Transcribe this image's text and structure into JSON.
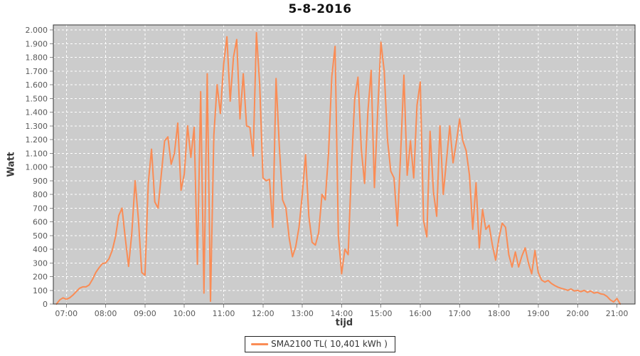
{
  "title": "5-8-2016",
  "colors": {
    "line": "#FA8C55",
    "plot_background": "#CCCCCC",
    "gridline": "#FFFFFF",
    "plot_border": "#333333",
    "tick_mark": "#8a8a8a",
    "tick_label": "#595959",
    "page_background": "#FFFFFF"
  },
  "legend": {
    "label": "SMA2100 TL( 10,401 kWh )"
  },
  "chart_data": {
    "type": "line",
    "title": "5-8-2016",
    "xlabel": "tijd",
    "ylabel": "Watt",
    "grid": true,
    "legend_position": "bottom",
    "xlim_hours": [
      6.67,
      21.46
    ],
    "ylim": [
      0,
      2000
    ],
    "y_tick_step": 100,
    "y_tick_labels": [
      "0",
      "100",
      "200",
      "300",
      "400",
      "500",
      "600",
      "700",
      "800",
      "900",
      "1.000",
      "1.100",
      "1.200",
      "1.300",
      "1.400",
      "1.500",
      "1.600",
      "1.700",
      "1.800",
      "1.900",
      "2.000"
    ],
    "x_tick_hours": [
      7,
      8,
      9,
      10,
      11,
      12,
      13,
      14,
      15,
      16,
      17,
      18,
      19,
      20,
      21
    ],
    "x_tick_labels": [
      "07:00",
      "08:00",
      "09:00",
      "10:00",
      "11:00",
      "12:00",
      "13:00",
      "14:00",
      "15:00",
      "16:00",
      "17:00",
      "18:00",
      "19:00",
      "20:00",
      "21:00"
    ],
    "series": [
      {
        "name": "SMA2100 TL( 10,401 kWh )",
        "points": [
          [
            "06:45",
            0
          ],
          [
            "06:50",
            30
          ],
          [
            "06:55",
            45
          ],
          [
            "07:00",
            35
          ],
          [
            "07:05",
            45
          ],
          [
            "07:10",
            65
          ],
          [
            "07:15",
            90
          ],
          [
            "07:20",
            115
          ],
          [
            "07:25",
            125
          ],
          [
            "07:30",
            125
          ],
          [
            "07:35",
            140
          ],
          [
            "07:40",
            180
          ],
          [
            "07:45",
            230
          ],
          [
            "07:50",
            265
          ],
          [
            "07:55",
            295
          ],
          [
            "08:00",
            300
          ],
          [
            "08:05",
            330
          ],
          [
            "08:10",
            390
          ],
          [
            "08:15",
            490
          ],
          [
            "08:20",
            645
          ],
          [
            "08:25",
            700
          ],
          [
            "08:30",
            480
          ],
          [
            "08:35",
            275
          ],
          [
            "08:40",
            520
          ],
          [
            "08:45",
            900
          ],
          [
            "08:50",
            620
          ],
          [
            "08:55",
            230
          ],
          [
            "09:00",
            210
          ],
          [
            "09:05",
            880
          ],
          [
            "09:10",
            1130
          ],
          [
            "09:15",
            745
          ],
          [
            "09:20",
            700
          ],
          [
            "09:25",
            950
          ],
          [
            "09:30",
            1190
          ],
          [
            "09:35",
            1220
          ],
          [
            "09:40",
            1020
          ],
          [
            "09:45",
            1100
          ],
          [
            "09:50",
            1320
          ],
          [
            "09:55",
            830
          ],
          [
            "10:00",
            950
          ],
          [
            "10:05",
            1300
          ],
          [
            "10:10",
            1070
          ],
          [
            "10:15",
            1290
          ],
          [
            "10:20",
            290
          ],
          [
            "10:25",
            1550
          ],
          [
            "10:30",
            80
          ],
          [
            "10:35",
            1680
          ],
          [
            "10:40",
            20
          ],
          [
            "10:45",
            1230
          ],
          [
            "10:50",
            1600
          ],
          [
            "10:55",
            1390
          ],
          [
            "11:00",
            1750
          ],
          [
            "11:05",
            1950
          ],
          [
            "11:10",
            1480
          ],
          [
            "11:15",
            1800
          ],
          [
            "11:20",
            1930
          ],
          [
            "11:25",
            1350
          ],
          [
            "11:30",
            1680
          ],
          [
            "11:35",
            1300
          ],
          [
            "11:40",
            1290
          ],
          [
            "11:45",
            1080
          ],
          [
            "11:50",
            1980
          ],
          [
            "11:55",
            1600
          ],
          [
            "12:00",
            920
          ],
          [
            "12:05",
            900
          ],
          [
            "12:10",
            910
          ],
          [
            "12:15",
            560
          ],
          [
            "12:20",
            1645
          ],
          [
            "12:25",
            1150
          ],
          [
            "12:30",
            760
          ],
          [
            "12:35",
            700
          ],
          [
            "12:40",
            480
          ],
          [
            "12:45",
            345
          ],
          [
            "12:50",
            420
          ],
          [
            "12:55",
            560
          ],
          [
            "13:00",
            800
          ],
          [
            "13:05",
            1090
          ],
          [
            "13:10",
            640
          ],
          [
            "13:15",
            450
          ],
          [
            "13:20",
            430
          ],
          [
            "13:25",
            520
          ],
          [
            "13:30",
            800
          ],
          [
            "13:35",
            760
          ],
          [
            "13:40",
            1100
          ],
          [
            "13:45",
            1660
          ],
          [
            "13:50",
            1880
          ],
          [
            "13:55",
            500
          ],
          [
            "14:00",
            220
          ],
          [
            "14:05",
            400
          ],
          [
            "14:10",
            360
          ],
          [
            "14:15",
            990
          ],
          [
            "14:20",
            1500
          ],
          [
            "14:25",
            1655
          ],
          [
            "14:30",
            1130
          ],
          [
            "14:35",
            880
          ],
          [
            "14:40",
            1400
          ],
          [
            "14:45",
            1705
          ],
          [
            "14:50",
            850
          ],
          [
            "14:55",
            1400
          ],
          [
            "15:00",
            1910
          ],
          [
            "15:05",
            1700
          ],
          [
            "15:10",
            1200
          ],
          [
            "15:15",
            970
          ],
          [
            "15:20",
            920
          ],
          [
            "15:25",
            570
          ],
          [
            "15:30",
            1100
          ],
          [
            "15:35",
            1670
          ],
          [
            "15:40",
            940
          ],
          [
            "15:45",
            1190
          ],
          [
            "15:50",
            920
          ],
          [
            "15:55",
            1450
          ],
          [
            "16:00",
            1620
          ],
          [
            "16:05",
            610
          ],
          [
            "16:10",
            490
          ],
          [
            "16:15",
            1260
          ],
          [
            "16:20",
            820
          ],
          [
            "16:25",
            640
          ],
          [
            "16:30",
            1300
          ],
          [
            "16:35",
            800
          ],
          [
            "16:40",
            1050
          ],
          [
            "16:45",
            1300
          ],
          [
            "16:50",
            1030
          ],
          [
            "16:55",
            1180
          ],
          [
            "17:00",
            1350
          ],
          [
            "17:05",
            1190
          ],
          [
            "17:10",
            1120
          ],
          [
            "17:15",
            940
          ],
          [
            "17:20",
            545
          ],
          [
            "17:25",
            885
          ],
          [
            "17:30",
            410
          ],
          [
            "17:35",
            690
          ],
          [
            "17:40",
            545
          ],
          [
            "17:45",
            575
          ],
          [
            "17:50",
            430
          ],
          [
            "17:55",
            320
          ],
          [
            "18:00",
            480
          ],
          [
            "18:05",
            590
          ],
          [
            "18:10",
            560
          ],
          [
            "18:15",
            360
          ],
          [
            "18:20",
            270
          ],
          [
            "18:25",
            380
          ],
          [
            "18:30",
            270
          ],
          [
            "18:35",
            350
          ],
          [
            "18:40",
            410
          ],
          [
            "18:45",
            300
          ],
          [
            "18:50",
            220
          ],
          [
            "18:55",
            390
          ],
          [
            "19:00",
            230
          ],
          [
            "19:05",
            175
          ],
          [
            "19:10",
            160
          ],
          [
            "19:15",
            172
          ],
          [
            "19:20",
            150
          ],
          [
            "19:25",
            135
          ],
          [
            "19:30",
            123
          ],
          [
            "19:35",
            115
          ],
          [
            "19:40",
            108
          ],
          [
            "19:45",
            100
          ],
          [
            "19:50",
            110
          ],
          [
            "19:55",
            95
          ],
          [
            "20:00",
            100
          ],
          [
            "20:05",
            90
          ],
          [
            "20:10",
            100
          ],
          [
            "20:15",
            85
          ],
          [
            "20:20",
            95
          ],
          [
            "20:25",
            80
          ],
          [
            "20:30",
            85
          ],
          [
            "20:35",
            75
          ],
          [
            "20:40",
            70
          ],
          [
            "20:45",
            55
          ],
          [
            "20:50",
            30
          ],
          [
            "20:55",
            15
          ],
          [
            "21:00",
            40
          ],
          [
            "21:05",
            0
          ]
        ]
      }
    ]
  }
}
